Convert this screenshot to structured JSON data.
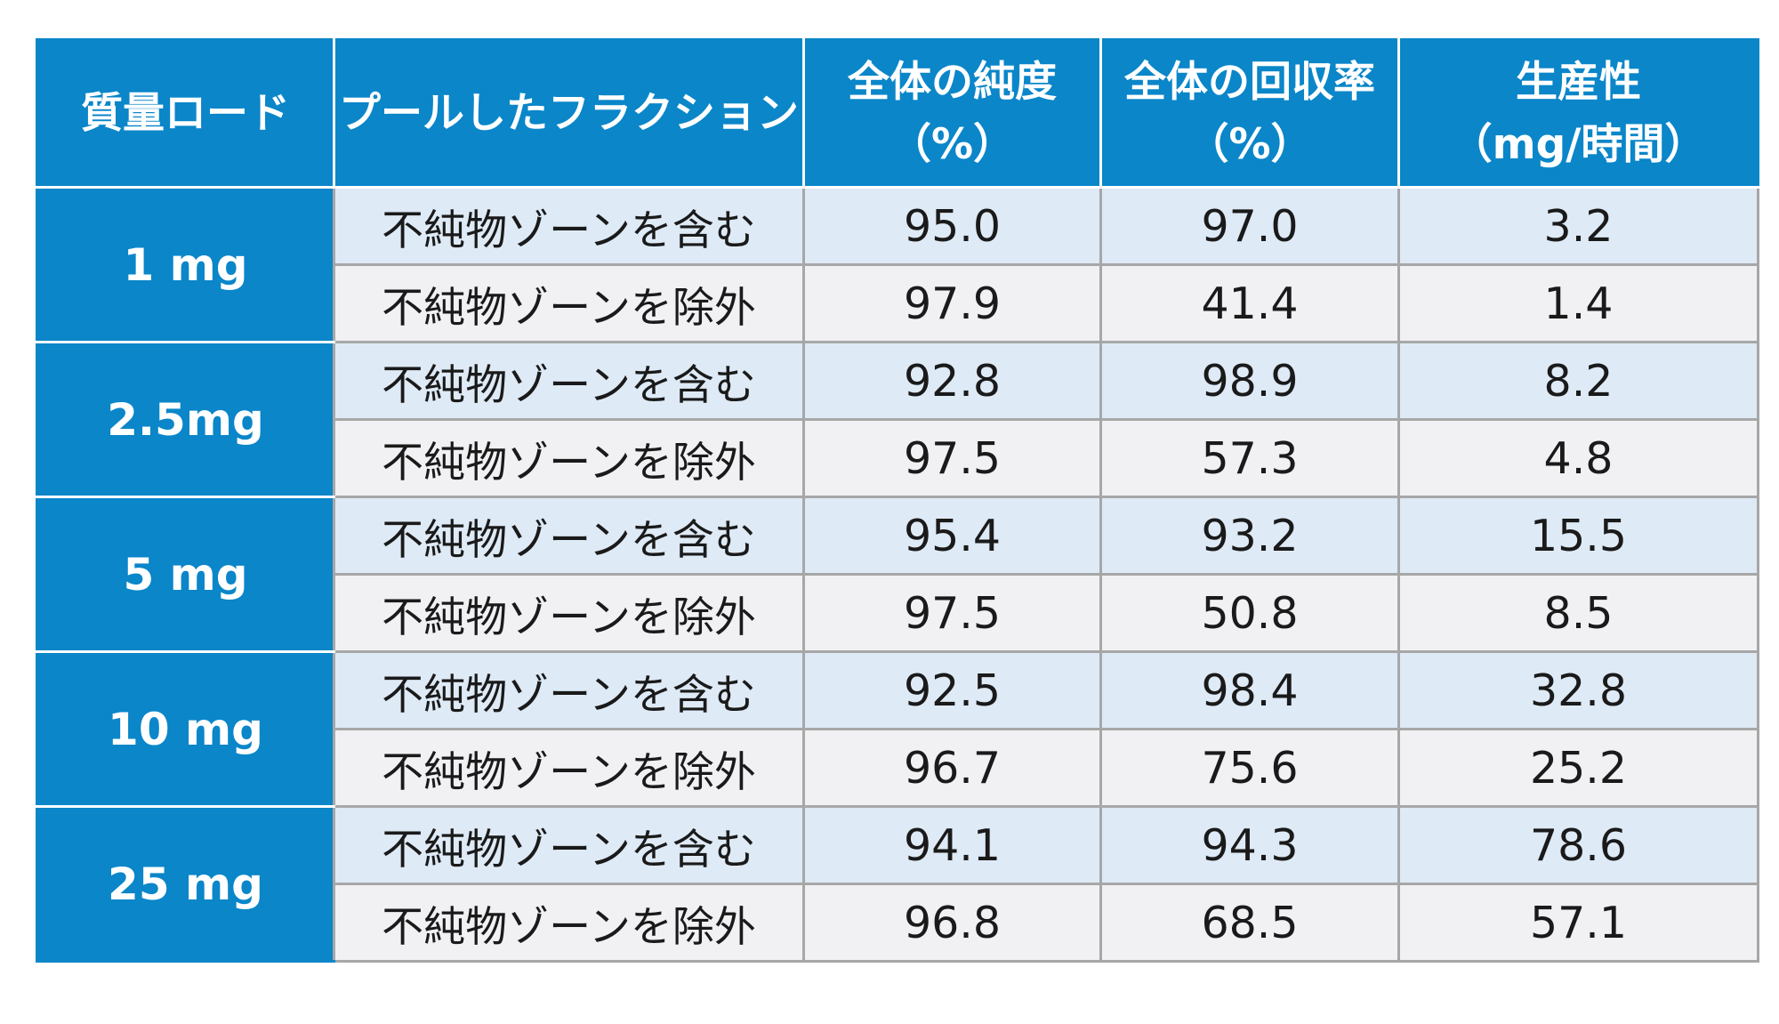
{
  "chart_data": {
    "type": "table",
    "title": "",
    "header_color": "#0a86c9",
    "row_color_incl": "#deeaf6",
    "row_color_excl": "#f1f1f4",
    "columns": [
      [
        "質量ロード"
      ],
      [
        "プールしたフラクション"
      ],
      [
        "全体の純度",
        "（%）"
      ],
      [
        "全体の回収率",
        "（%）"
      ],
      [
        "生産性",
        "（mg/時間）"
      ]
    ],
    "fraction_labels": {
      "incl": "不純物ゾーンを含む",
      "excl": "不純物ゾーンを除外"
    },
    "groups": [
      {
        "load": "1 mg",
        "rows": [
          {
            "kind": "incl",
            "purity": "95.0",
            "recovery": "97.0",
            "productivity": "3.2"
          },
          {
            "kind": "excl",
            "purity": "97.9",
            "recovery": "41.4",
            "productivity": "1.4"
          }
        ]
      },
      {
        "load": "2.5mg",
        "rows": [
          {
            "kind": "incl",
            "purity": "92.8",
            "recovery": "98.9",
            "productivity": "8.2"
          },
          {
            "kind": "excl",
            "purity": "97.5",
            "recovery": "57.3",
            "productivity": "4.8"
          }
        ]
      },
      {
        "load": "5 mg",
        "rows": [
          {
            "kind": "incl",
            "purity": "95.4",
            "recovery": "93.2",
            "productivity": "15.5"
          },
          {
            "kind": "excl",
            "purity": "97.5",
            "recovery": "50.8",
            "productivity": "8.5"
          }
        ]
      },
      {
        "load": "10 mg",
        "rows": [
          {
            "kind": "incl",
            "purity": "92.5",
            "recovery": "98.4",
            "productivity": "32.8"
          },
          {
            "kind": "excl",
            "purity": "96.7",
            "recovery": "75.6",
            "productivity": "25.2"
          }
        ]
      },
      {
        "load": "25 mg",
        "rows": [
          {
            "kind": "incl",
            "purity": "94.1",
            "recovery": "94.3",
            "productivity": "78.6"
          },
          {
            "kind": "excl",
            "purity": "96.8",
            "recovery": "68.5",
            "productivity": "57.1"
          }
        ]
      }
    ]
  }
}
